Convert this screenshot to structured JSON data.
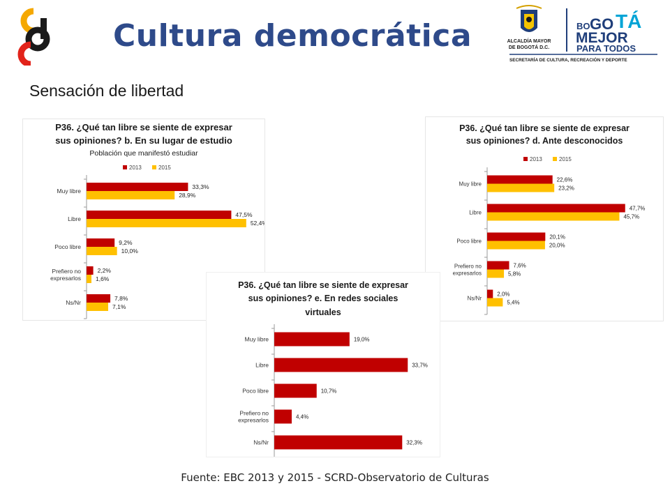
{
  "header": {
    "title": "Cultura democrática",
    "logo_left": "cb-logo",
    "logo_right": {
      "crest_icon": "bogota-crest-icon",
      "alcaldia_line1": "ALCALDÍA MAYOR",
      "alcaldia_line2": "DE BOGOTÁ D.C.",
      "brand_bo": "BO",
      "brand_go": "GO",
      "brand_ta": "TÁ",
      "brand_line2": "MEJOR",
      "brand_line3": "PARA TODOS",
      "secretaria": "SECRETARÍA DE CULTURA, RECREACIÓN Y DEPORTE"
    }
  },
  "section_title": "Sensación de libertad",
  "footer": {
    "source": "Fuente: EBC 2013 y 2015 - SCRD-Observatorio de Culturas"
  },
  "colors": {
    "title": "#2e4a8a",
    "series_2013": "#c00000",
    "series_2015": "#ffc000",
    "brand_blue": "#1f3e7a",
    "brand_cyan": "#00a4d6",
    "logo_red": "#e2231a",
    "logo_yellow": "#f5a800"
  },
  "chart_data": [
    {
      "id": "chart-b",
      "type": "bar",
      "orientation": "horizontal",
      "title_lines": [
        "P36. ¿Qué tan libre se siente de expresar",
        "sus opiniones? b. En su lugar de estudio"
      ],
      "subtitle": "Población que manifestó estudiar",
      "categories": [
        [
          "Muy libre"
        ],
        [
          "Libre"
        ],
        [
          "Poco libre"
        ],
        [
          "Prefiero no",
          "expresarlos"
        ],
        [
          "Ns/Nr"
        ]
      ],
      "series": [
        {
          "name": "2013",
          "values": [
            33.3,
            47.5,
            9.2,
            2.2,
            7.8
          ],
          "labels": [
            "33,3%",
            "47,5%",
            "9,2%",
            "2,2%",
            "7,8%"
          ]
        },
        {
          "name": "2015",
          "values": [
            28.9,
            52.4,
            10.0,
            1.6,
            7.1
          ],
          "labels": [
            "28,9%",
            "52,4%",
            "10,0%",
            "1,6%",
            "7,1%"
          ]
        }
      ],
      "legend": "top",
      "grid": false,
      "xlim": [
        0,
        60
      ]
    },
    {
      "id": "chart-d",
      "type": "bar",
      "orientation": "horizontal",
      "title_lines": [
        "P36. ¿Qué tan libre se siente de expresar",
        "sus opiniones? d. Ante desconocidos"
      ],
      "subtitle": "",
      "categories": [
        [
          "Muy libre"
        ],
        [
          "Libre"
        ],
        [
          "Poco libre"
        ],
        [
          "Prefiero no",
          "expresarlos"
        ],
        [
          "Ns/Nr"
        ]
      ],
      "series": [
        {
          "name": "2013",
          "values": [
            22.6,
            47.7,
            20.1,
            7.6,
            2.0
          ],
          "labels": [
            "22,6%",
            "47,7%",
            "20,1%",
            "7,6%",
            "2,0%"
          ]
        },
        {
          "name": "2015",
          "values": [
            23.2,
            45.7,
            20.0,
            5.8,
            5.4
          ],
          "labels": [
            "23,2%",
            "45,7%",
            "20,0%",
            "5,8%",
            "5,4%"
          ]
        }
      ],
      "legend": "top",
      "grid": false,
      "xlim": [
        0,
        55
      ]
    },
    {
      "id": "chart-e",
      "type": "bar",
      "orientation": "horizontal",
      "title_lines": [
        "P36. ¿Qué tan libre se siente de expresar",
        "sus opiniones? e. En redes sociales",
        "virtuales"
      ],
      "subtitle": "",
      "categories": [
        [
          "Muy libre"
        ],
        [
          "Libre"
        ],
        [
          "Poco libre"
        ],
        [
          "Prefiero no",
          "expresarlos"
        ],
        [
          "Ns/Nr"
        ]
      ],
      "series": [
        {
          "name": "",
          "values": [
            19.0,
            33.7,
            10.7,
            4.4,
            32.3
          ],
          "labels": [
            "19,0%",
            "33,7%",
            "10,7%",
            "4,4%",
            "32,3%"
          ]
        }
      ],
      "legend": "none",
      "grid": false,
      "xlim": [
        0,
        40
      ]
    }
  ]
}
